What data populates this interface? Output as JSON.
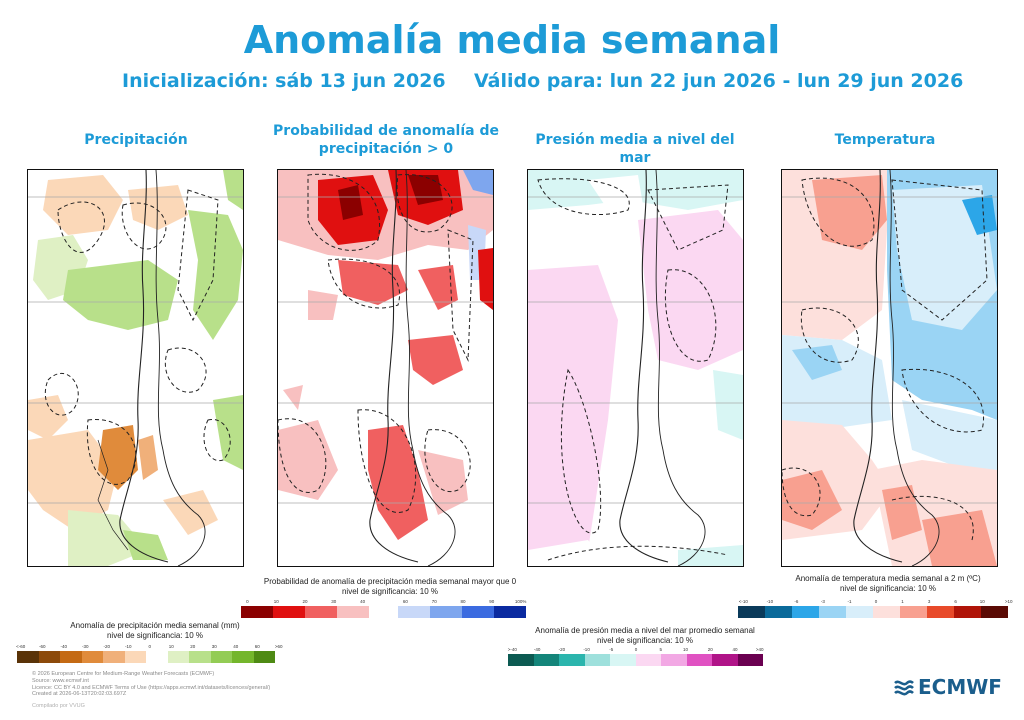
{
  "header": {
    "title": "Anomalía media semanal",
    "init": "Inicialización: sáb 13 jun 2026",
    "valid": "Válido para: lun 22 jun 2026 - lun 29 jun 2026"
  },
  "panels": [
    {
      "title": "Precipitación"
    },
    {
      "title": "Probabilidad de anomalía de precipitación > 0"
    },
    {
      "title": "Presión media a nivel del mar"
    },
    {
      "title": "Temperatura"
    }
  ],
  "legends": {
    "precip": {
      "title": "Anomalía de precipitación media semanal (mm)",
      "sig": "nivel de significancia: 10 %",
      "ticks": [
        "<-60",
        "-60",
        "-40",
        "-30",
        "-20",
        "-10",
        "0",
        "10",
        "20",
        "30",
        "40",
        "60",
        ">60"
      ],
      "colors": [
        "#5a3308",
        "#8c4a0a",
        "#c46a14",
        "#e08b3b",
        "#f0b07a",
        "#fbd8b8",
        "#ffffff",
        "#dff0c4",
        "#b8e08a",
        "#93cc55",
        "#74b62c",
        "#4e8a14"
      ]
    },
    "prob": {
      "title": "Probabilidad de anomalía de precipitación media semanal mayor que 0",
      "sig": "nivel de significancia: 10 %",
      "ticks_neg": [
        "0",
        "10",
        "20",
        "30",
        "40"
      ],
      "ticks_pos": [
        "60",
        "70",
        "80",
        "90",
        "100%"
      ],
      "colors_neg": [
        "#8b0000",
        "#e01010",
        "#f06060",
        "#f8c0c0"
      ],
      "colors_pos": [
        "#c8d8f8",
        "#7ea6ee",
        "#3b6be0",
        "#0a2aa0"
      ]
    },
    "mslp": {
      "title": "Anomalía de presión media a nivel del mar promedio semanal",
      "sig": "nivel de significancia: 10 %",
      "ticks": [
        ">-40",
        "-40",
        "-20",
        "-10",
        "-5",
        "0",
        "5",
        "10",
        "20",
        "40",
        ">40"
      ],
      "colors": [
        "#0c5a52",
        "#14857a",
        "#2bb5ad",
        "#9ee0dc",
        "#d8f6f4",
        "#fbd8f2",
        "#f2a8e4",
        "#e052c2",
        "#b01488",
        "#6a0050"
      ]
    },
    "temp": {
      "title": "Anomalía de temperatura media semanal a 2 m (ºC)",
      "sig": "nivel de significancia: 10 %",
      "ticks": [
        "<-10",
        "-10",
        "-6",
        "-3",
        "-1",
        "0",
        "1",
        "3",
        "6",
        "10",
        ">10"
      ],
      "colors": [
        "#0a3a5a",
        "#0a6a9a",
        "#2ca6e8",
        "#9ad4f4",
        "#d8eefa",
        "#fde0dc",
        "#f8a090",
        "#e84a2a",
        "#b01408",
        "#5a0a04"
      ]
    }
  },
  "footer": {
    "lines": [
      "© 2026 European Centre for Medium-Range Weather Forecasts (ECMWF)",
      "Source: www.ecmwf.int",
      "Licence: CC BY 4.0 and ECMWF Terms of Use (https://apps.ecmwf.int/datasets/licences/general/)",
      "Created at 2026-06-13T20:02:03.697Z"
    ],
    "compiled": "Compilado por VVUG"
  },
  "logo": {
    "text": "ECMWF"
  }
}
